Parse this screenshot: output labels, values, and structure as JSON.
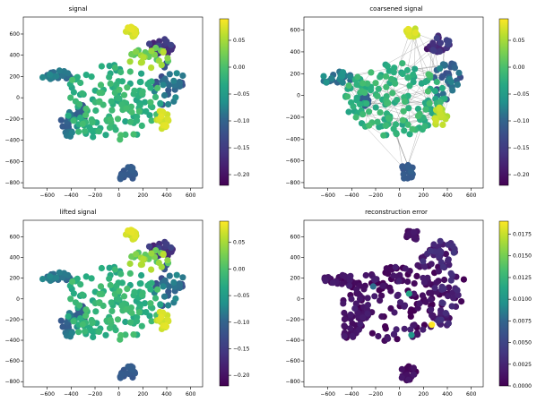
{
  "chart_data": [
    {
      "type": "scatter",
      "title": "signal",
      "xlim": [
        -800,
        700
      ],
      "ylim": [
        -850,
        760
      ],
      "x_ticks": [
        -600,
        -400,
        -200,
        0,
        200,
        400,
        600
      ],
      "y_ticks": [
        -800,
        -600,
        -400,
        -200,
        0,
        200,
        400,
        600
      ],
      "x_tick_labels": [
        "−600",
        "−400",
        "−200",
        "0",
        "200",
        "400",
        "600"
      ],
      "y_tick_labels": [
        "−800",
        "−600",
        "−400",
        "−200",
        "0",
        "200",
        "400",
        "600"
      ],
      "colormap": "viridis",
      "color_range": [
        -0.22,
        0.09
      ],
      "colorbar_ticks": [
        0.05,
        0.0,
        -0.05,
        -0.1,
        -0.15,
        -0.2
      ],
      "colorbar_tick_labels": [
        "0.05",
        "0.00",
        "−0.05",
        "−0.10",
        "−0.15",
        "−0.20"
      ],
      "edges_visible": false,
      "clusters": [
        {
          "cx": -60,
          "cy": -50,
          "rx": 420,
          "ry": 360,
          "value": -0.02,
          "spread": 0.02
        },
        {
          "cx": -310,
          "cy": -140,
          "rx": 45,
          "ry": 70,
          "value": -0.11,
          "spread": 0.01
        },
        {
          "cx": 360,
          "cy": -210,
          "rx": 60,
          "ry": 90,
          "value": 0.07,
          "spread": 0.01
        },
        {
          "cx": 70,
          "cy": -720,
          "rx": 70,
          "ry": 80,
          "value": -0.11,
          "spread": 0.01
        },
        {
          "cx": 420,
          "cy": 120,
          "rx": 130,
          "ry": 220,
          "value": -0.1,
          "spread": 0.03
        },
        {
          "cx": 360,
          "cy": 480,
          "rx": 120,
          "ry": 80,
          "value": -0.17,
          "spread": 0.03
        },
        {
          "cx": 110,
          "cy": 620,
          "rx": 60,
          "ry": 50,
          "value": 0.07,
          "spread": 0.01
        },
        {
          "cx": -520,
          "cy": 200,
          "rx": 130,
          "ry": 60,
          "value": -0.09,
          "spread": 0.02
        },
        {
          "cx": -420,
          "cy": -260,
          "rx": 70,
          "ry": 130,
          "value": -0.09,
          "spread": 0.02
        },
        {
          "cx": 260,
          "cy": 360,
          "rx": 170,
          "ry": 120,
          "value": 0.03,
          "spread": 0.03
        }
      ]
    },
    {
      "type": "scatter",
      "title": "coarsened signal",
      "xlim": [
        -800,
        700
      ],
      "ylim": [
        -850,
        720
      ],
      "x_ticks": [
        -600,
        -400,
        -200,
        0,
        200,
        400,
        600
      ],
      "y_ticks": [
        -800,
        -600,
        -400,
        -200,
        0,
        200,
        400,
        600
      ],
      "x_tick_labels": [
        "−600",
        "−400",
        "−200",
        "0",
        "200",
        "400",
        "600"
      ],
      "y_tick_labels": [
        "−800",
        "−600",
        "−400",
        "−200",
        "0",
        "200",
        "400",
        "600"
      ],
      "colormap": "viridis",
      "color_range": [
        -0.22,
        0.09
      ],
      "colorbar_ticks": [
        0.05,
        0.0,
        -0.05,
        -0.1,
        -0.15,
        -0.2
      ],
      "colorbar_tick_labels": [
        "0.05",
        "0.00",
        "−0.05",
        "−0.10",
        "−0.15",
        "−0.20"
      ],
      "edges_visible": true,
      "clusters": [
        {
          "cx": -40,
          "cy": -40,
          "rx": 420,
          "ry": 340,
          "value": -0.02,
          "spread": 0.02
        },
        {
          "cx": -300,
          "cy": -40,
          "rx": 45,
          "ry": 60,
          "value": -0.11,
          "spread": 0.01
        },
        {
          "cx": 340,
          "cy": -200,
          "rx": 60,
          "ry": 90,
          "value": 0.06,
          "spread": 0.01
        },
        {
          "cx": 60,
          "cy": -700,
          "rx": 60,
          "ry": 70,
          "value": -0.11,
          "spread": 0.01
        },
        {
          "cx": 400,
          "cy": 120,
          "rx": 130,
          "ry": 200,
          "value": -0.1,
          "spread": 0.03
        },
        {
          "cx": 320,
          "cy": 470,
          "rx": 110,
          "ry": 80,
          "value": -0.17,
          "spread": 0.03
        },
        {
          "cx": 110,
          "cy": 580,
          "rx": 60,
          "ry": 50,
          "value": 0.07,
          "spread": 0.01
        },
        {
          "cx": -520,
          "cy": 160,
          "rx": 130,
          "ry": 60,
          "value": -0.08,
          "spread": 0.02
        }
      ]
    },
    {
      "type": "scatter",
      "title": "lifted signal",
      "xlim": [
        -800,
        700
      ],
      "ylim": [
        -850,
        760
      ],
      "x_ticks": [
        -600,
        -400,
        -200,
        0,
        200,
        400,
        600
      ],
      "y_ticks": [
        -800,
        -600,
        -400,
        -200,
        0,
        200,
        400,
        600
      ],
      "x_tick_labels": [
        "−600",
        "−400",
        "−200",
        "0",
        "200",
        "400",
        "600"
      ],
      "y_tick_labels": [
        "−800",
        "−600",
        "−400",
        "−200",
        "0",
        "200",
        "400",
        "600"
      ],
      "colormap": "viridis",
      "color_range": [
        -0.22,
        0.09
      ],
      "colorbar_ticks": [
        0.05,
        0.0,
        -0.05,
        -0.1,
        -0.15,
        -0.2
      ],
      "colorbar_tick_labels": [
        "0.05",
        "0.00",
        "−0.05",
        "−0.10",
        "−0.15",
        "−0.20"
      ],
      "edges_visible": false,
      "clusters": [
        {
          "cx": -60,
          "cy": -50,
          "rx": 420,
          "ry": 360,
          "value": -0.02,
          "spread": 0.02
        },
        {
          "cx": -310,
          "cy": -140,
          "rx": 45,
          "ry": 70,
          "value": -0.11,
          "spread": 0.01
        },
        {
          "cx": 360,
          "cy": -210,
          "rx": 60,
          "ry": 90,
          "value": 0.07,
          "spread": 0.01
        },
        {
          "cx": 70,
          "cy": -720,
          "rx": 70,
          "ry": 80,
          "value": -0.11,
          "spread": 0.01
        },
        {
          "cx": 420,
          "cy": 120,
          "rx": 130,
          "ry": 220,
          "value": -0.1,
          "spread": 0.03
        },
        {
          "cx": 360,
          "cy": 480,
          "rx": 120,
          "ry": 80,
          "value": -0.17,
          "spread": 0.03
        },
        {
          "cx": 110,
          "cy": 620,
          "rx": 60,
          "ry": 50,
          "value": 0.07,
          "spread": 0.01
        },
        {
          "cx": -520,
          "cy": 200,
          "rx": 130,
          "ry": 60,
          "value": -0.09,
          "spread": 0.02
        },
        {
          "cx": -420,
          "cy": -260,
          "rx": 70,
          "ry": 130,
          "value": -0.09,
          "spread": 0.02
        },
        {
          "cx": 260,
          "cy": 360,
          "rx": 170,
          "ry": 120,
          "value": 0.03,
          "spread": 0.03
        }
      ]
    },
    {
      "type": "scatter",
      "title": "reconstruction error",
      "xlim": [
        -800,
        700
      ],
      "ylim": [
        -850,
        760
      ],
      "x_ticks": [
        -600,
        -400,
        -200,
        0,
        200,
        400,
        600
      ],
      "y_ticks": [
        -800,
        -600,
        -400,
        -200,
        0,
        200,
        400,
        600
      ],
      "x_tick_labels": [
        "−600",
        "−400",
        "−200",
        "0",
        "200",
        "400",
        "600"
      ],
      "y_tick_labels": [
        "−800",
        "−600",
        "−400",
        "−200",
        "0",
        "200",
        "400",
        "600"
      ],
      "colormap": "viridis",
      "color_range": [
        0.0,
        0.019
      ],
      "colorbar_ticks": [
        0.0175,
        0.015,
        0.0125,
        0.01,
        0.0075,
        0.005,
        0.0025,
        0.0
      ],
      "colorbar_tick_labels": [
        "0.0175",
        "0.0150",
        "0.0125",
        "0.0100",
        "0.0075",
        "0.0050",
        "0.0025",
        "0.0000"
      ],
      "edges_visible": false,
      "clusters": [
        {
          "cx": -60,
          "cy": -50,
          "rx": 420,
          "ry": 360,
          "value": 0.0008,
          "spread": 0.0015
        },
        {
          "cx": -310,
          "cy": -140,
          "rx": 45,
          "ry": 70,
          "value": 0.001,
          "spread": 0.001
        },
        {
          "cx": 360,
          "cy": -210,
          "rx": 60,
          "ry": 90,
          "value": 0.002,
          "spread": 0.002
        },
        {
          "cx": 70,
          "cy": -720,
          "rx": 70,
          "ry": 80,
          "value": 0.0008,
          "spread": 0.001
        },
        {
          "cx": 420,
          "cy": 120,
          "rx": 130,
          "ry": 220,
          "value": 0.0015,
          "spread": 0.002
        },
        {
          "cx": 360,
          "cy": 480,
          "rx": 120,
          "ry": 80,
          "value": 0.002,
          "spread": 0.002
        },
        {
          "cx": 110,
          "cy": 620,
          "rx": 60,
          "ry": 50,
          "value": 0.001,
          "spread": 0.001
        },
        {
          "cx": -520,
          "cy": 200,
          "rx": 130,
          "ry": 60,
          "value": 0.001,
          "spread": 0.001
        },
        {
          "cx": -420,
          "cy": -260,
          "rx": 70,
          "ry": 130,
          "value": 0.001,
          "spread": 0.001
        },
        {
          "cx": 260,
          "cy": 360,
          "rx": 170,
          "ry": 120,
          "value": 0.002,
          "spread": 0.002
        }
      ],
      "highlight_points": [
        {
          "x": 270,
          "y": -250,
          "value": 0.019
        },
        {
          "x": 80,
          "y": 50,
          "value": 0.011
        },
        {
          "x": 100,
          "y": -350,
          "value": 0.01
        },
        {
          "x": -220,
          "y": 120,
          "value": 0.008
        }
      ]
    }
  ]
}
